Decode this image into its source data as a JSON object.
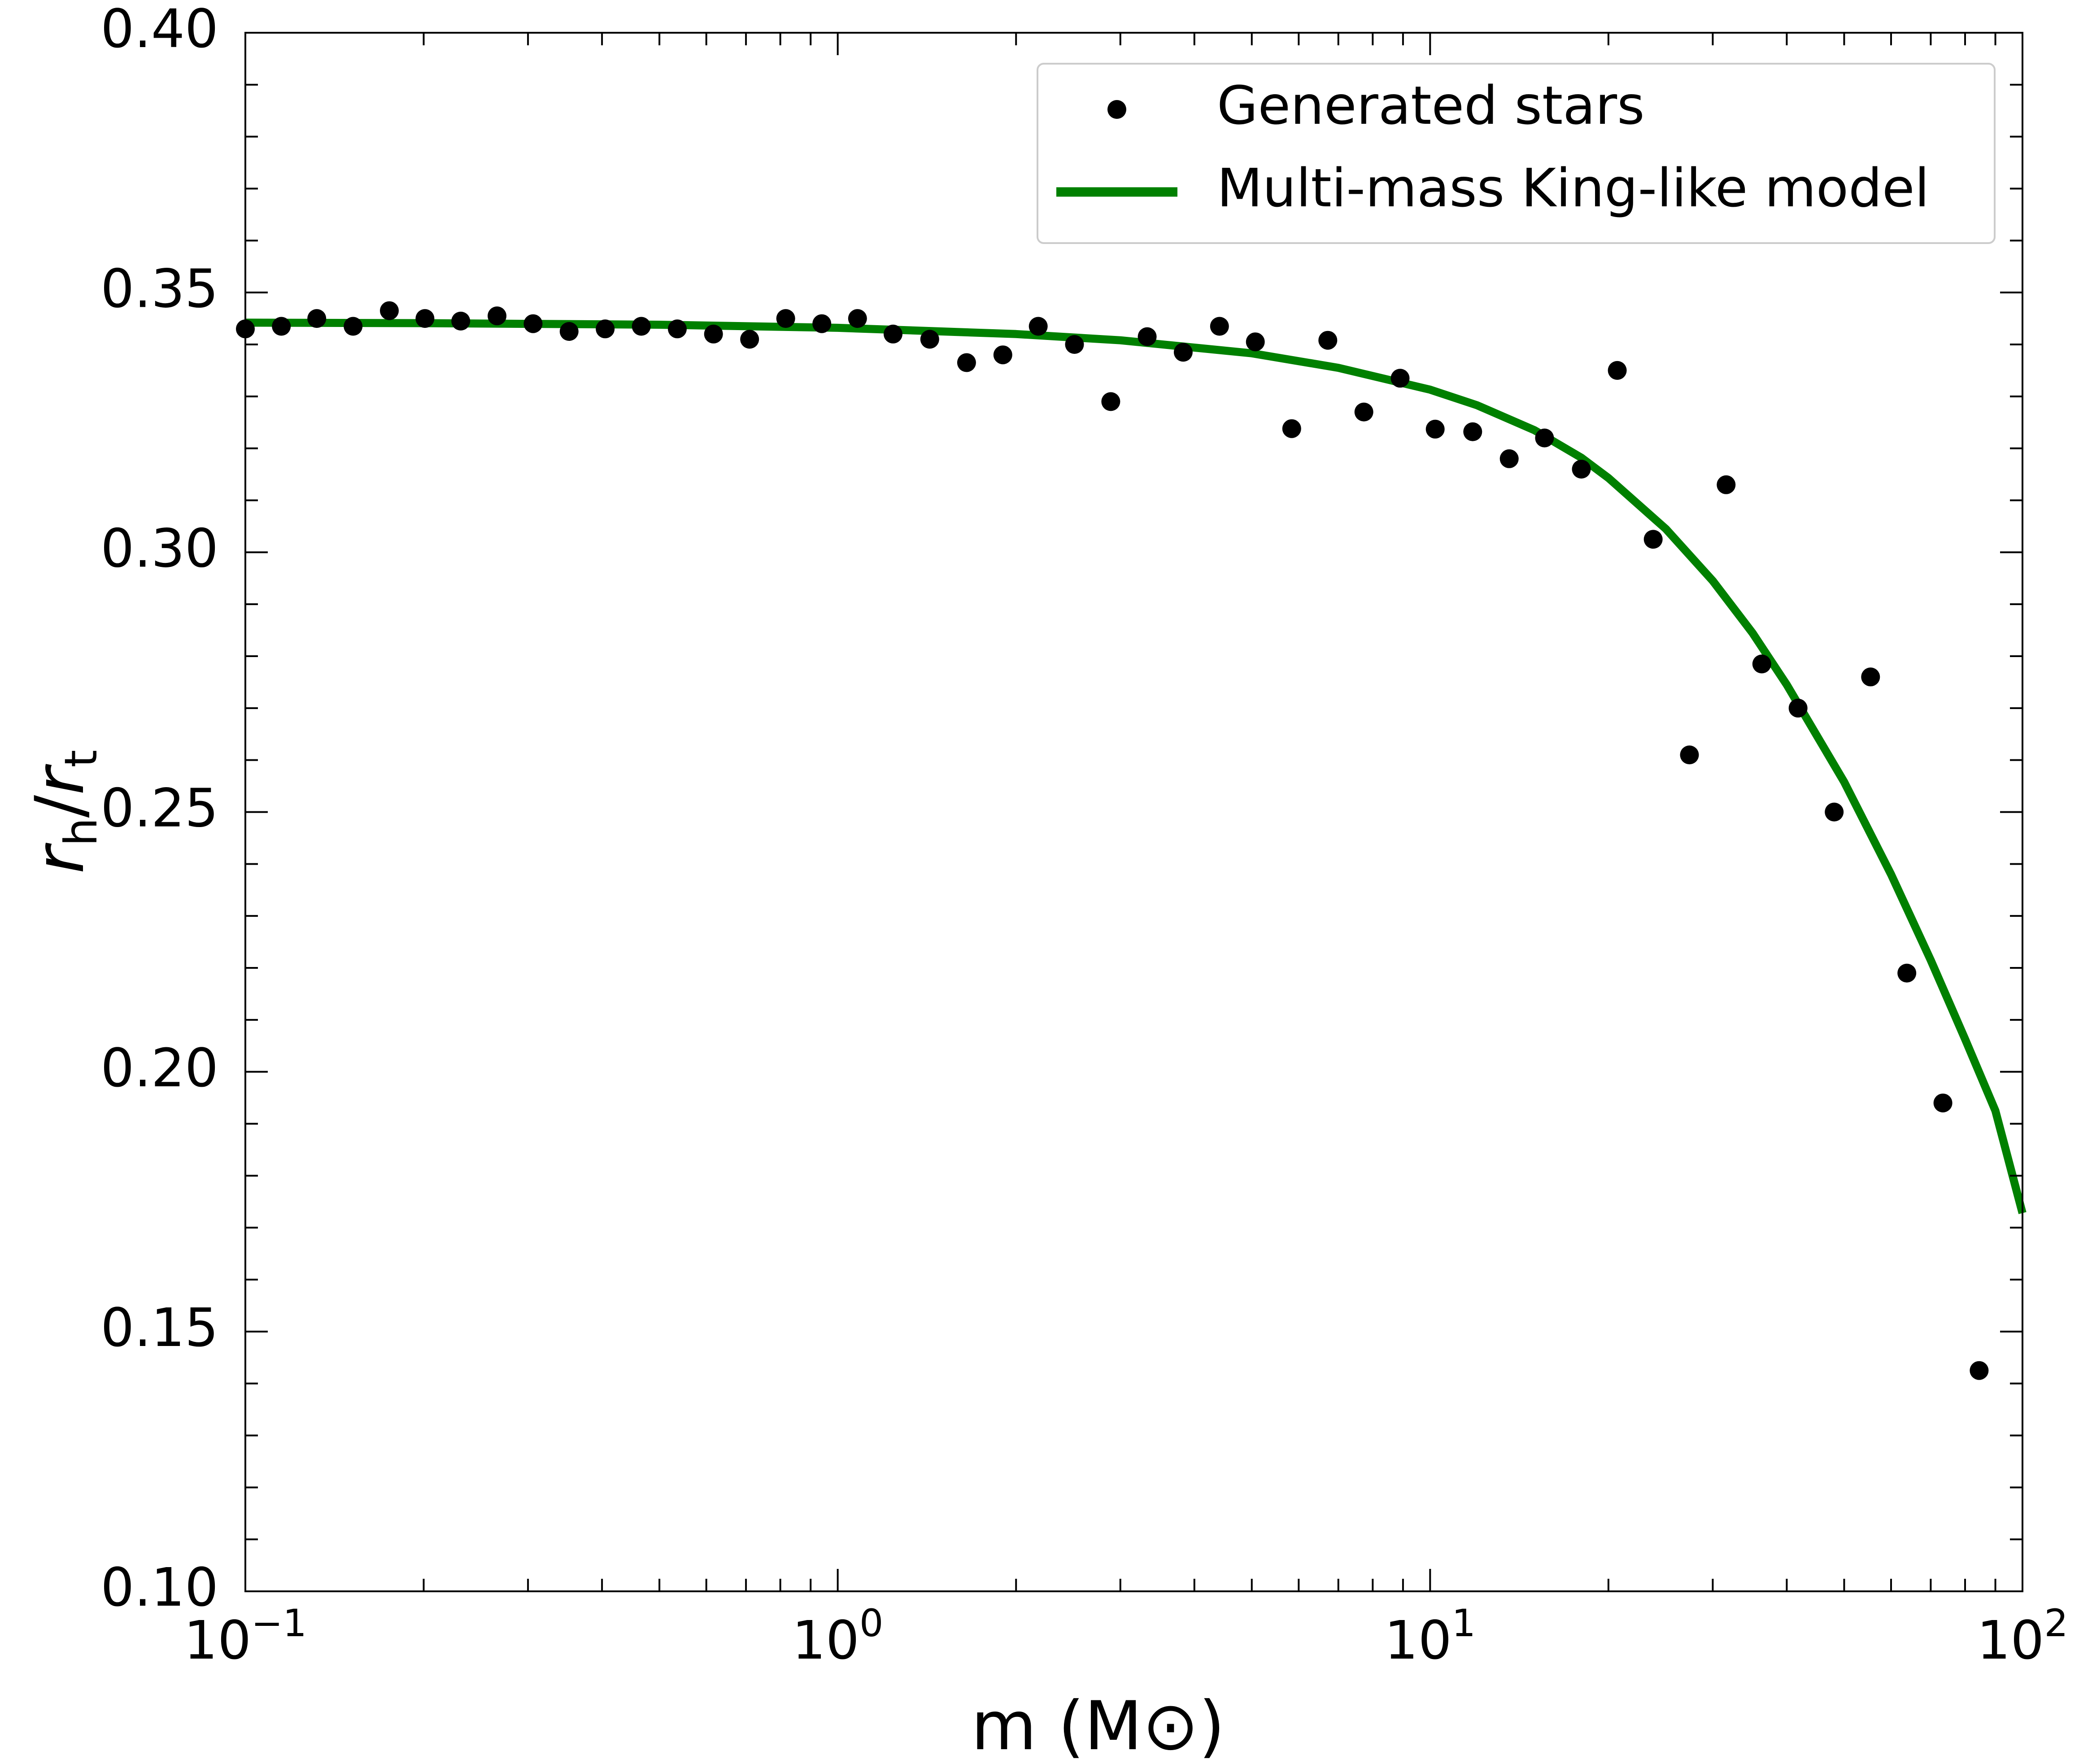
{
  "colors": {
    "points": "#000000",
    "model_line": "#008000",
    "axes": "#000000",
    "legend_border": "#cccccc",
    "background": "#ffffff"
  },
  "chart_data": {
    "type": "scatter",
    "title": "",
    "xlabel": "m (M⊙)",
    "ylabel": "r_h/r_t",
    "xscale": "log",
    "xlim": [
      0.1,
      100
    ],
    "ylim": [
      0.1,
      0.4
    ],
    "grid": false,
    "legend_position": "upper right",
    "x_tick_labels": [
      {
        "value": 0.1,
        "base": "10",
        "exp": "−1"
      },
      {
        "value": 1,
        "base": "10",
        "exp": "0"
      },
      {
        "value": 10,
        "base": "10",
        "exp": "1"
      },
      {
        "value": 100,
        "base": "10",
        "exp": "2"
      }
    ],
    "y_ticks": [
      0.1,
      0.15,
      0.2,
      0.25,
      0.3,
      0.35,
      0.4
    ],
    "y_tick_labels": [
      "0.10",
      "0.15",
      "0.20",
      "0.25",
      "0.30",
      "0.35",
      "0.40"
    ],
    "series": [
      {
        "name": "Generated stars",
        "kind": "scatter",
        "points": [
          [
            0.1,
            0.343
          ],
          [
            0.115,
            0.3435
          ],
          [
            0.132,
            0.345
          ],
          [
            0.152,
            0.3435
          ],
          [
            0.175,
            0.3465
          ],
          [
            0.201,
            0.345
          ],
          [
            0.231,
            0.3445
          ],
          [
            0.266,
            0.3455
          ],
          [
            0.306,
            0.344
          ],
          [
            0.352,
            0.3425
          ],
          [
            0.405,
            0.343
          ],
          [
            0.466,
            0.3435
          ],
          [
            0.536,
            0.343
          ],
          [
            0.617,
            0.342
          ],
          [
            0.71,
            0.341
          ],
          [
            0.817,
            0.345
          ],
          [
            0.94,
            0.344
          ],
          [
            1.08,
            0.345
          ],
          [
            1.24,
            0.342
          ],
          [
            1.43,
            0.341
          ],
          [
            1.65,
            0.3365
          ],
          [
            1.9,
            0.338
          ],
          [
            2.18,
            0.3435
          ],
          [
            2.51,
            0.34
          ],
          [
            2.89,
            0.329
          ],
          [
            3.33,
            0.3415
          ],
          [
            3.83,
            0.3385
          ],
          [
            4.41,
            0.3435
          ],
          [
            5.07,
            0.3405
          ],
          [
            5.84,
            0.3238
          ],
          [
            6.72,
            0.3408
          ],
          [
            7.73,
            0.327
          ],
          [
            8.9,
            0.3335
          ],
          [
            10.2,
            0.3237
          ],
          [
            11.8,
            0.3232
          ],
          [
            13.6,
            0.318
          ],
          [
            15.6,
            0.322
          ],
          [
            18.0,
            0.316
          ],
          [
            20.7,
            0.335
          ],
          [
            23.8,
            0.3025
          ],
          [
            27.4,
            0.261
          ],
          [
            31.6,
            0.313
          ],
          [
            36.3,
            0.2785
          ],
          [
            41.8,
            0.27
          ],
          [
            48.1,
            0.25
          ],
          [
            55.4,
            0.276
          ],
          [
            63.8,
            0.219
          ],
          [
            73.4,
            0.194
          ],
          [
            84.5,
            0.1425
          ]
        ]
      },
      {
        "name": "Multi-mass King-like model",
        "kind": "line",
        "points": [
          [
            0.1,
            0.3442
          ],
          [
            0.2,
            0.3441
          ],
          [
            0.5,
            0.3438
          ],
          [
            1,
            0.3432
          ],
          [
            2,
            0.342
          ],
          [
            3,
            0.3408
          ],
          [
            5,
            0.3383
          ],
          [
            7,
            0.3355
          ],
          [
            10,
            0.3313
          ],
          [
            12,
            0.3283
          ],
          [
            15,
            0.3235
          ],
          [
            18,
            0.3182
          ],
          [
            20,
            0.3143
          ],
          [
            25,
            0.3045
          ],
          [
            30,
            0.2945
          ],
          [
            35,
            0.2845
          ],
          [
            40,
            0.2745
          ],
          [
            50,
            0.2558
          ],
          [
            60,
            0.238
          ],
          [
            70,
            0.2215
          ],
          [
            80,
            0.2063
          ],
          [
            90,
            0.1925
          ],
          [
            100,
            0.1728
          ]
        ]
      }
    ]
  }
}
